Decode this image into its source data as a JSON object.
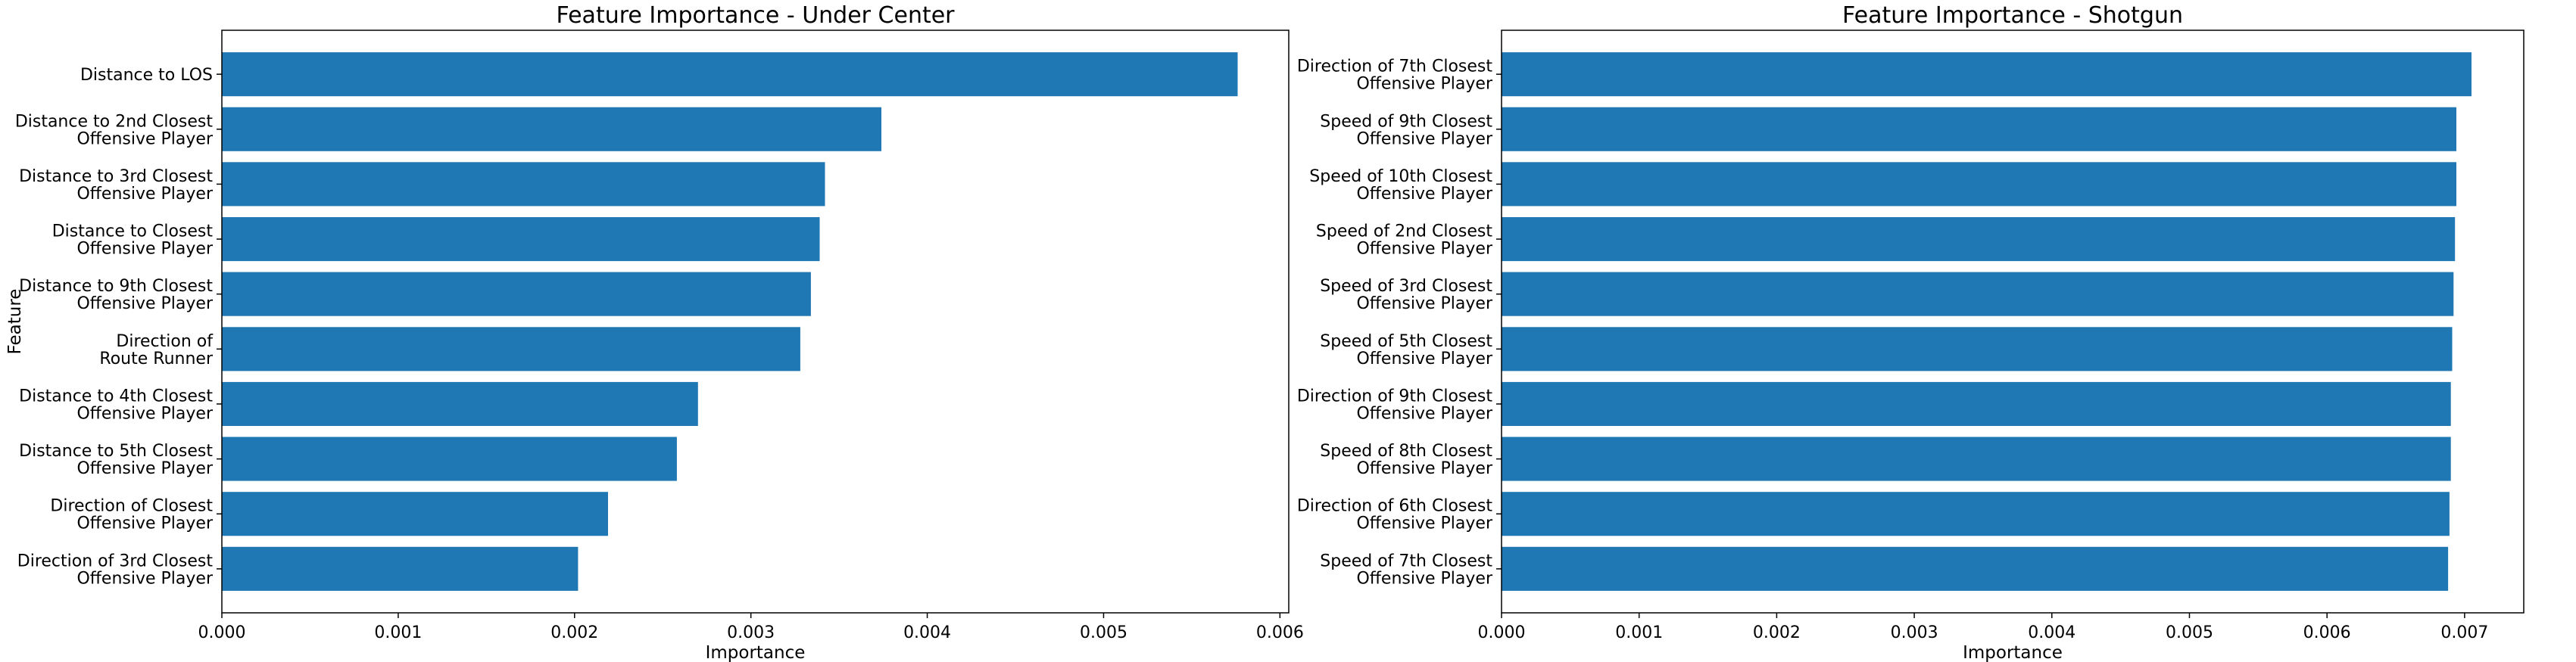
{
  "chart_data": [
    {
      "type": "bar",
      "orientation": "horizontal",
      "title": "Feature Importance - Under Center",
      "xlabel": "Importance",
      "ylabel": "Feature",
      "xlim": [
        0,
        0.00605
      ],
      "xticks": [
        "0.000",
        "0.001",
        "0.002",
        "0.003",
        "0.004",
        "0.005",
        "0.006"
      ],
      "bar_color": "#1f77b4",
      "grid": false,
      "categories": [
        [
          "Distance to LOS"
        ],
        [
          "Distance to 2nd Closest",
          "Offensive Player"
        ],
        [
          "Distance to 3rd Closest",
          "Offensive Player"
        ],
        [
          "Distance to Closest",
          "Offensive Player"
        ],
        [
          "Distance to 9th Closest",
          "Offensive Player"
        ],
        [
          "Direction of",
          "Route Runner"
        ],
        [
          "Distance to 4th Closest",
          "Offensive Player"
        ],
        [
          "Distance to 5th Closest",
          "Offensive Player"
        ],
        [
          "Direction of Closest",
          "Offensive Player"
        ],
        [
          "Direction of 3rd Closest",
          "Offensive Player"
        ]
      ],
      "values": [
        0.00576,
        0.00374,
        0.00342,
        0.00339,
        0.00334,
        0.00328,
        0.0027,
        0.00258,
        0.00219,
        0.00202
      ]
    },
    {
      "type": "bar",
      "orientation": "horizontal",
      "title": "Feature Importance - Shotgun",
      "xlabel": "Importance",
      "ylabel": "",
      "xlim": [
        0,
        0.00743
      ],
      "xticks": [
        "0.000",
        "0.001",
        "0.002",
        "0.003",
        "0.004",
        "0.005",
        "0.006",
        "0.007"
      ],
      "bar_color": "#1f77b4",
      "grid": false,
      "categories": [
        [
          "Direction of 7th Closest",
          "Offensive Player"
        ],
        [
          "Speed of 9th Closest",
          "Offensive Player"
        ],
        [
          "Speed of 10th Closest",
          "Offensive Player"
        ],
        [
          "Speed of 2nd Closest",
          "Offensive Player"
        ],
        [
          "Speed of 3rd Closest",
          "Offensive Player"
        ],
        [
          "Speed of 5th Closest",
          "Offensive Player"
        ],
        [
          "Direction of 9th Closest",
          "Offensive Player"
        ],
        [
          "Speed of 8th Closest",
          "Offensive Player"
        ],
        [
          "Direction of 6th Closest",
          "Offensive Player"
        ],
        [
          "Speed of 7th Closest",
          "Offensive Player"
        ]
      ],
      "values": [
        0.00705,
        0.00694,
        0.00694,
        0.00693,
        0.00692,
        0.00691,
        0.0069,
        0.0069,
        0.00689,
        0.00688
      ]
    }
  ]
}
